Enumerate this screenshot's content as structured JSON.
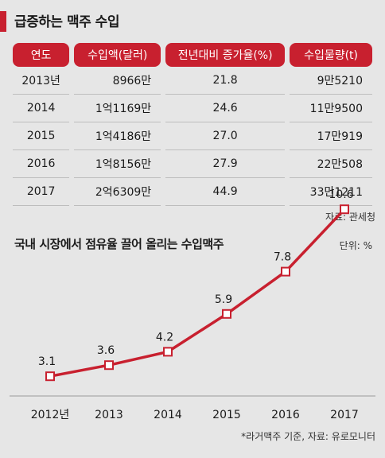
{
  "title": "급증하는 맥주 수입",
  "colors": {
    "accent": "#c8202f",
    "line": "#c8202f",
    "marker_fill": "#ffffff",
    "background": "#e6e6e6"
  },
  "table": {
    "headers": [
      "연도",
      "수입액(달러)",
      "전년대비 증가율(%)",
      "수입물량(t)"
    ],
    "rows": [
      [
        "2013년",
        "8966만",
        "21.8",
        "9만5210"
      ],
      [
        "2014",
        "1억1169만",
        "24.6",
        "11만9500"
      ],
      [
        "2015",
        "1억4186만",
        "27.0",
        "17만919"
      ],
      [
        "2016",
        "1억8156만",
        "27.9",
        "22만508"
      ],
      [
        "2017",
        "2억6309만",
        "44.9",
        "33만1211"
      ]
    ],
    "source": "자료: 관세청"
  },
  "chart_data": {
    "type": "line",
    "title": "국내 시장에서 점유율 끌어 올리는 수입맥주",
    "unit": "단위: %",
    "categories": [
      "2012년",
      "2013",
      "2014",
      "2015",
      "2016",
      "2017"
    ],
    "values": [
      3.1,
      3.6,
      4.2,
      5.9,
      7.8,
      10.6
    ],
    "value_labels": [
      "3.1",
      "3.6",
      "4.2",
      "5.9",
      "7.8",
      "10.6"
    ],
    "ylim": [
      0,
      12
    ],
    "grid": false,
    "footnote": "*라거맥주 기준, 자료: 유로모니터"
  }
}
